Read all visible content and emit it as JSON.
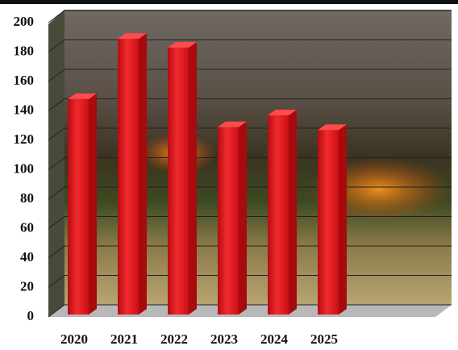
{
  "chart_data": {
    "type": "bar",
    "categories": [
      "2020",
      "2021",
      "2022",
      "2023",
      "2024",
      "2025"
    ],
    "values": [
      148,
      189,
      183,
      129,
      137,
      127
    ],
    "color": "#e8151b",
    "ylim": [
      0,
      200
    ],
    "yticks": [
      0,
      20,
      40,
      60,
      80,
      100,
      120,
      140,
      160,
      180,
      200
    ],
    "grid": true
  }
}
